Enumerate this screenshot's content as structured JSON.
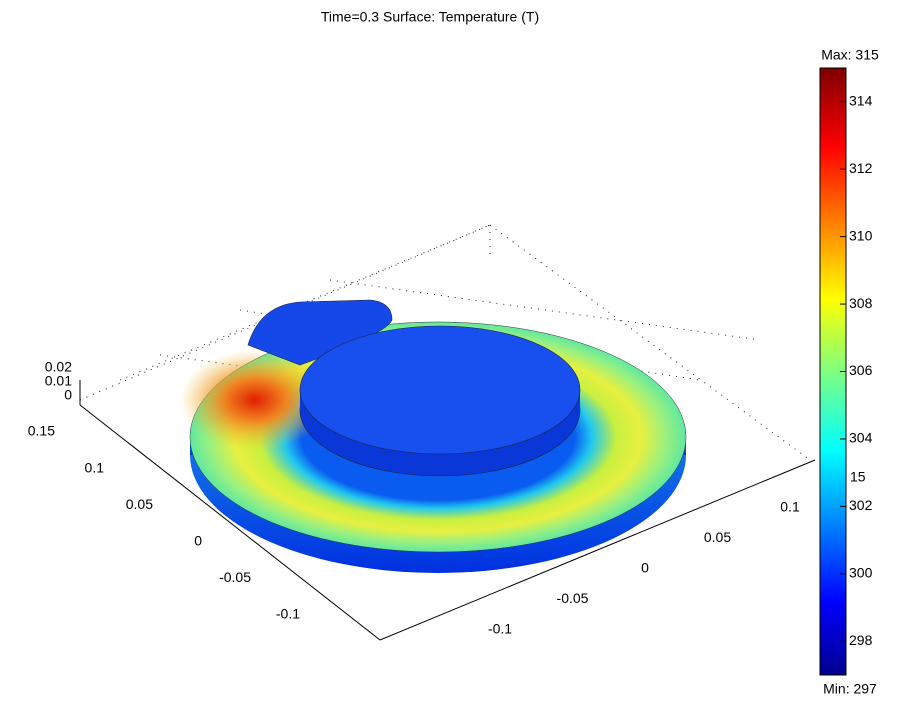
{
  "chart_data": {
    "type": "surface",
    "title": "Time=0.3 Surface: Temperature (T)",
    "zticks": [
      0.02,
      0.01,
      0
    ],
    "yticks": [
      0.15,
      0.1,
      0.05,
      0,
      -0.05,
      -0.1
    ],
    "xticks": [
      0.1,
      0.05,
      0,
      -0.05,
      -0.1
    ],
    "colorbar": {
      "clim": [
        297,
        315
      ],
      "ticks": [
        298,
        300,
        302,
        304,
        306,
        308,
        310,
        312,
        314
      ],
      "max_label": "Max: 315",
      "min_label": "Min: 297"
    },
    "annotations": [
      "15"
    ]
  }
}
